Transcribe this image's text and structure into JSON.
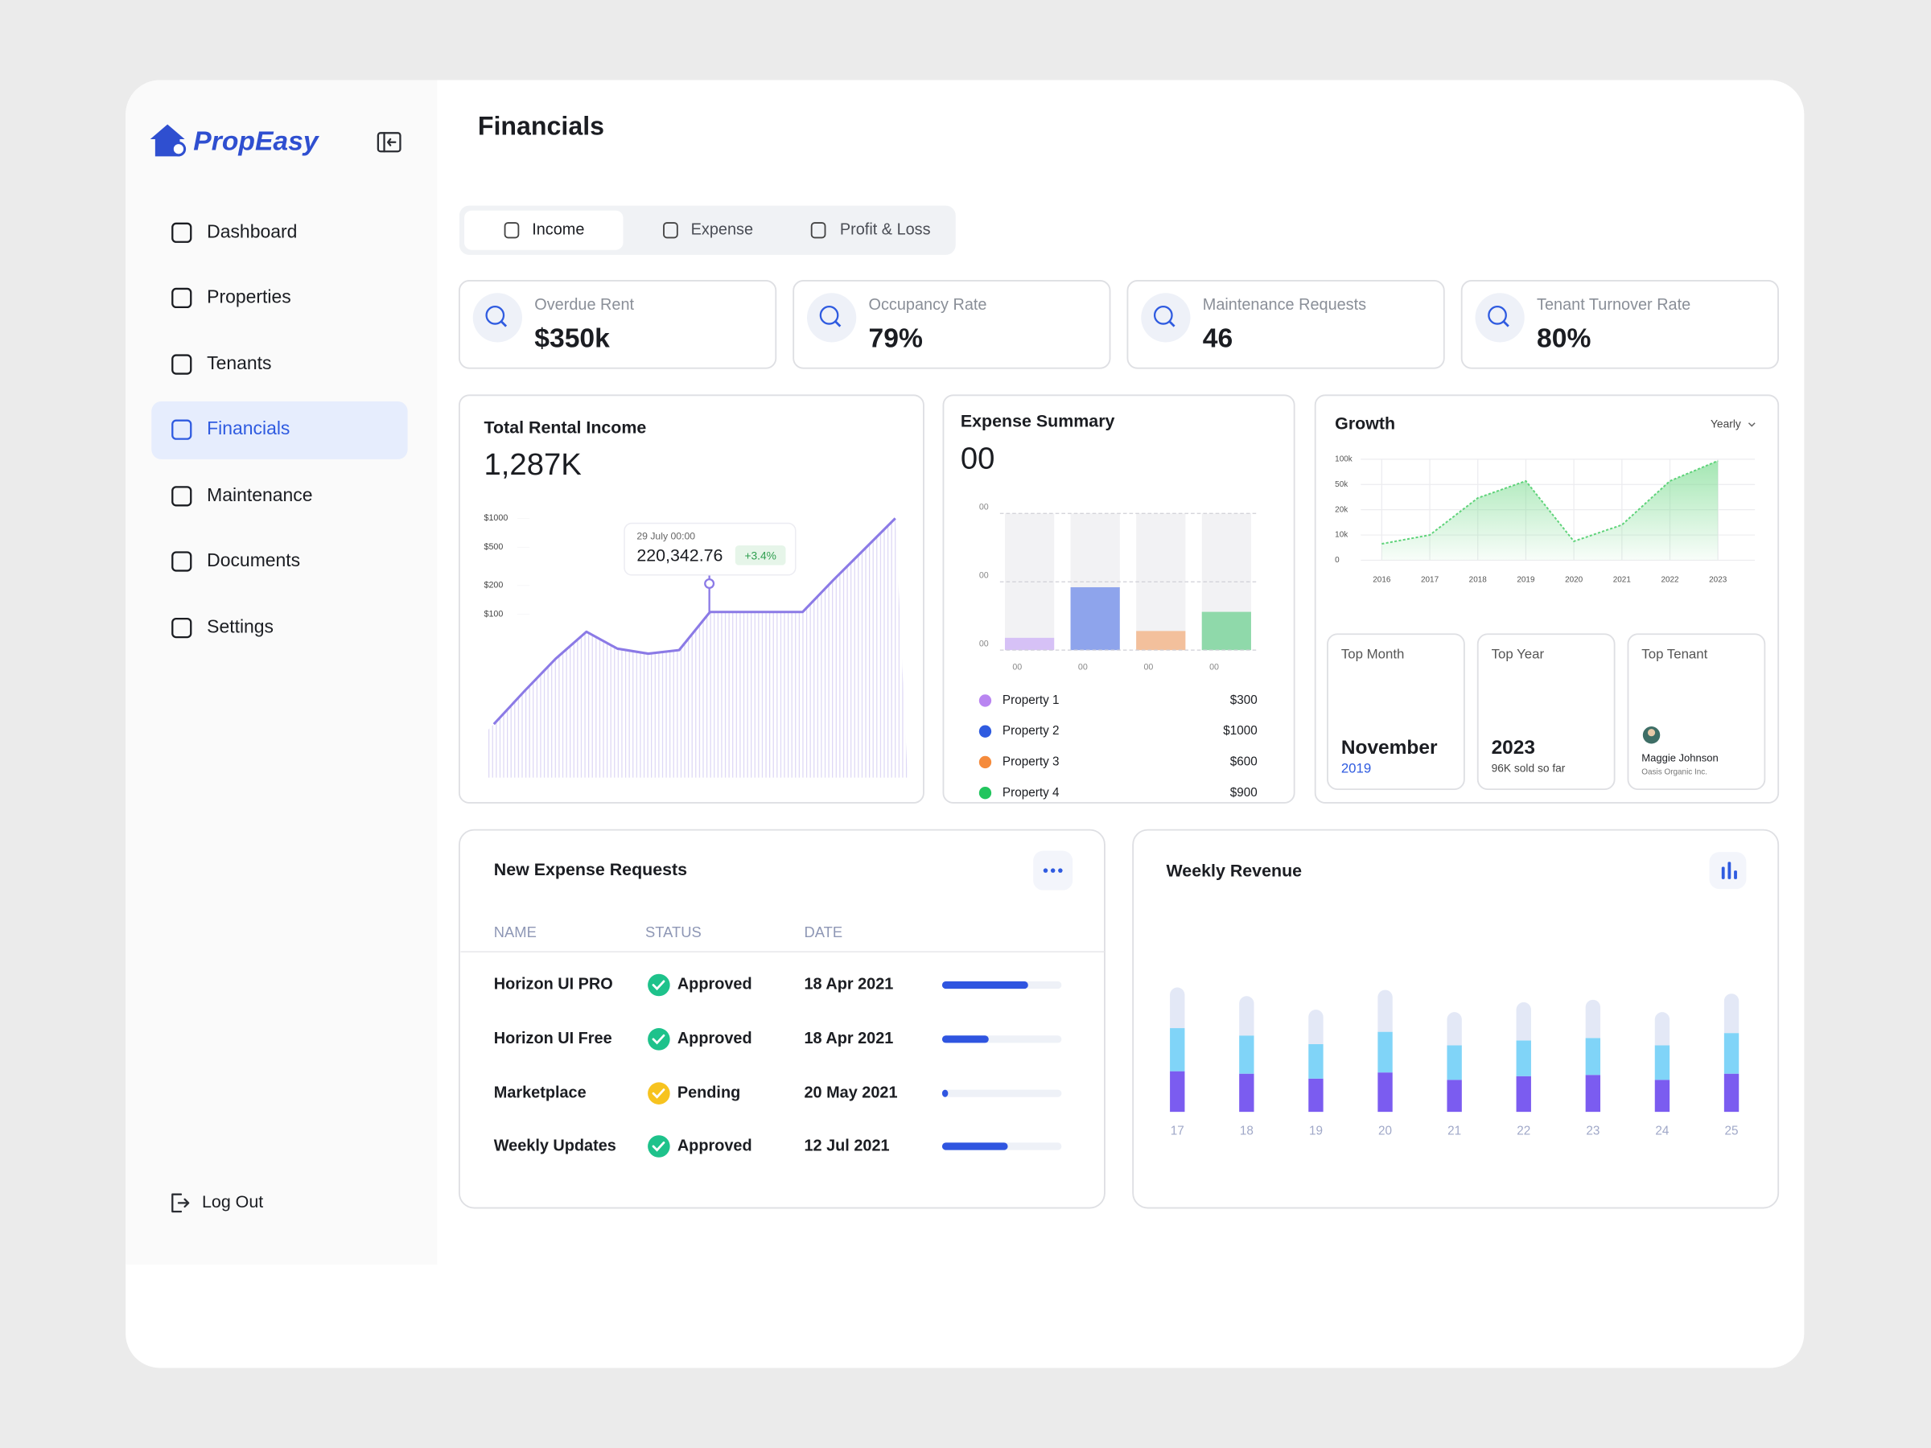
{
  "sidebar": {
    "brand": "PropEasy",
    "nav": [
      "Dashboard",
      "Properties",
      "Tenants",
      "Financials",
      "Maintenance",
      "Documents",
      "Settings"
    ],
    "logout": "Log Out"
  },
  "header": {
    "title": "Financials"
  },
  "tabs": [
    "Income",
    "Expense",
    "Profit & Loss"
  ],
  "stats": [
    {
      "label": "Overdue Rent",
      "value": "$350k"
    },
    {
      "label": "Occupancy Rate",
      "value": "79%"
    },
    {
      "label": "Maintenance Requests",
      "value": "46"
    },
    {
      "label": "Tenant Turnover Rate",
      "value": "80%"
    }
  ],
  "chart_data": [
    {
      "type": "line",
      "title": "Total Rental Income",
      "total": "1,287K",
      "values": [
        7.2,
        16,
        34.5,
        66,
        44,
        39,
        42.5,
        106,
        106,
        106,
        106,
        229,
        478,
        1000
      ],
      "color": "#8b7ae6",
      "log_scale": true,
      "ylim": [
        2,
        1200
      ],
      "yticks": [
        {
          "value": 1000,
          "label": "$1000"
        },
        {
          "value": 500,
          "label": "$500"
        },
        {
          "value": 200,
          "label": "$200"
        },
        {
          "value": 100,
          "label": "$100"
        }
      ],
      "annotation": {
        "date": "29 July 00:00",
        "value": "220,342.76",
        "change": "+3.4%"
      }
    },
    {
      "type": "bar",
      "title": "Expense Summary",
      "total": "00",
      "categories": [
        "00",
        "00",
        "00",
        "00"
      ],
      "values": [
        9,
        46,
        14,
        28
      ],
      "colors": [
        "#d6c1f6",
        "#8ea4ec",
        "#f3c09c",
        "#8fd9aa"
      ],
      "ylim": [
        0,
        100
      ],
      "yticks": [
        {
          "value": 100,
          "label": "00"
        },
        {
          "value": 50,
          "label": "00"
        },
        {
          "value": 0,
          "label": "00"
        }
      ],
      "grid": true,
      "legend": {
        "names": [
          "Property 1",
          "Property 2",
          "Property 3",
          "Property 4"
        ],
        "amounts": [
          "$300",
          "$1000",
          "$600",
          "$900"
        ],
        "colors": [
          "#b985f1",
          "#2f5be0",
          "#f58b3c",
          "#22c55e"
        ]
      }
    },
    {
      "type": "area",
      "title": "Growth",
      "period": "Yearly",
      "categories": [
        2016,
        2017,
        2018,
        2019,
        2020,
        2021,
        2022,
        2023
      ],
      "values": [
        6500,
        10000,
        34000,
        57000,
        7500,
        14000,
        57000,
        97000
      ],
      "color": "#5fd37a",
      "ylim": [
        0,
        100000
      ],
      "yticks": [
        0,
        {
          "value": 10000,
          "label": "10k"
        },
        {
          "value": 20000,
          "label": "20k"
        },
        {
          "value": 50000,
          "label": "50k"
        },
        {
          "value": 100000,
          "label": "100k"
        }
      ],
      "grid": true
    },
    {
      "type": "stacked-bar",
      "title": "Weekly Revenue",
      "categories": [
        17,
        18,
        19,
        20,
        21,
        22,
        23,
        24,
        25
      ],
      "series": [
        {
          "color": "#7b5cf0",
          "values": [
            33,
            31,
            27,
            32,
            26,
            29,
            30,
            26,
            31
          ]
        },
        {
          "color": "#80d4f8",
          "values": [
            35,
            31,
            28,
            33,
            28,
            29,
            30,
            28,
            33
          ]
        },
        {
          "color": "#e3e8f6",
          "values": [
            33,
            32,
            28,
            34,
            27,
            31,
            31,
            27,
            32
          ]
        }
      ],
      "ylim": [
        0,
        120
      ]
    }
  ],
  "highlights": [
    {
      "label": "Top Month",
      "value": "November",
      "sub": "2019"
    },
    {
      "label": "Top Year",
      "value": "2023",
      "sub": "96K sold so far"
    },
    {
      "label": "Top Tenant",
      "value": "Maggie Johnson",
      "sub": "Oasis Organic Inc."
    }
  ],
  "requests": {
    "title": "New Expense Requests",
    "columns": [
      "NAME",
      "STATUS",
      "DATE"
    ],
    "progress_range": [
      0,
      100
    ],
    "rows": [
      {
        "name": "Horizon UI PRO",
        "status": "Approved",
        "date": "18 Apr 2021",
        "progress": 72,
        "status_color": "#1ec28b"
      },
      {
        "name": "Horizon UI Free",
        "status": "Approved",
        "date": "18 Apr 2021",
        "progress": 39,
        "status_color": "#1ec28b"
      },
      {
        "name": "Marketplace",
        "status": "Pending",
        "date": "20 May 2021",
        "progress": 5,
        "status_color": "#f7c31f"
      },
      {
        "name": "Weekly Updates",
        "status": "Approved",
        "date": "12 Jul 2021",
        "progress": 55,
        "status_color": "#1ec28b"
      }
    ]
  }
}
